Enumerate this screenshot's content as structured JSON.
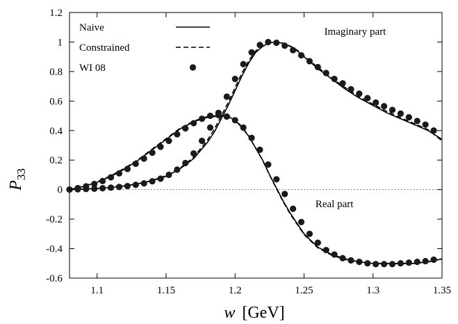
{
  "chart_data": {
    "type": "line",
    "title": "",
    "ylabel_main": "P",
    "ylabel_sub": "33",
    "xlabel_var": "w",
    "xlabel_unit": "[GeV]",
    "xlim": [
      1.08,
      1.35
    ],
    "ylim": [
      -0.6,
      1.2
    ],
    "xticks": [
      "1.1",
      "1.15",
      "1.2",
      "1.25",
      "1.3",
      "1.35"
    ],
    "xtick_values": [
      1.1,
      1.15,
      1.2,
      1.25,
      1.3,
      1.35
    ],
    "yticks": [
      "1.2",
      "1",
      "0.8",
      "0.6",
      "0.4",
      "0.2",
      "0",
      "-0.2",
      "-0.4",
      "-0.6"
    ],
    "ytick_values": [
      1.2,
      1.0,
      0.8,
      0.6,
      0.4,
      0.2,
      0.0,
      -0.2,
      -0.4,
      -0.6
    ],
    "zero_line": "dotted",
    "legend": {
      "position": "top-left",
      "entries": [
        {
          "label": "Naive",
          "style": "solid"
        },
        {
          "label": "Constrained",
          "style": "dashed"
        },
        {
          "label": "WI 08",
          "style": "points"
        }
      ]
    },
    "annotations": [
      {
        "text": "Imaginary part",
        "x": 1.287,
        "y": 1.05
      },
      {
        "text": "Real part",
        "x": 1.272,
        "y": -0.12
      }
    ],
    "series": [
      {
        "name": "Naive",
        "part": "imaginary",
        "style": "solid",
        "x": [
          1.08,
          1.09,
          1.1,
          1.11,
          1.12,
          1.13,
          1.14,
          1.15,
          1.16,
          1.17,
          1.18,
          1.185,
          1.19,
          1.195,
          1.2,
          1.205,
          1.21,
          1.215,
          1.22,
          1.225,
          1.23,
          1.235,
          1.24,
          1.245,
          1.25,
          1.26,
          1.27,
          1.28,
          1.29,
          1.3,
          1.31,
          1.32,
          1.33,
          1.34,
          1.35
        ],
        "y": [
          0.0,
          0.003,
          0.008,
          0.015,
          0.025,
          0.04,
          0.06,
          0.09,
          0.14,
          0.21,
          0.32,
          0.39,
          0.48,
          0.57,
          0.67,
          0.77,
          0.86,
          0.93,
          0.97,
          0.995,
          1.0,
          0.99,
          0.97,
          0.94,
          0.9,
          0.82,
          0.75,
          0.68,
          0.62,
          0.57,
          0.52,
          0.48,
          0.44,
          0.4,
          0.34
        ]
      },
      {
        "name": "Constrained",
        "part": "imaginary",
        "style": "dashed",
        "x": [
          1.08,
          1.09,
          1.1,
          1.11,
          1.12,
          1.13,
          1.14,
          1.15,
          1.16,
          1.17,
          1.18,
          1.185,
          1.19,
          1.195,
          1.2,
          1.205,
          1.21,
          1.215,
          1.22,
          1.225,
          1.23,
          1.235,
          1.24,
          1.245,
          1.25,
          1.26,
          1.27,
          1.28,
          1.29,
          1.3,
          1.31,
          1.32,
          1.33,
          1.34,
          1.35
        ],
        "y": [
          0.0,
          0.003,
          0.008,
          0.015,
          0.025,
          0.04,
          0.062,
          0.095,
          0.145,
          0.22,
          0.335,
          0.41,
          0.5,
          0.59,
          0.69,
          0.79,
          0.875,
          0.94,
          0.978,
          0.997,
          1.0,
          0.992,
          0.973,
          0.945,
          0.905,
          0.828,
          0.757,
          0.69,
          0.63,
          0.578,
          0.53,
          0.487,
          0.447,
          0.405,
          0.33
        ]
      },
      {
        "name": "Naive",
        "part": "real",
        "style": "solid",
        "x": [
          1.08,
          1.09,
          1.1,
          1.11,
          1.12,
          1.13,
          1.14,
          1.15,
          1.16,
          1.17,
          1.18,
          1.19,
          1.195,
          1.2,
          1.205,
          1.21,
          1.215,
          1.22,
          1.225,
          1.23,
          1.235,
          1.24,
          1.25,
          1.26,
          1.27,
          1.28,
          1.29,
          1.3,
          1.31,
          1.32,
          1.33,
          1.34,
          1.35
        ],
        "y": [
          0.0,
          0.02,
          0.05,
          0.09,
          0.14,
          0.2,
          0.27,
          0.34,
          0.41,
          0.46,
          0.49,
          0.5,
          0.495,
          0.47,
          0.42,
          0.36,
          0.28,
          0.2,
          0.1,
          0.01,
          -0.08,
          -0.16,
          -0.3,
          -0.39,
          -0.44,
          -0.47,
          -0.49,
          -0.5,
          -0.5,
          -0.5,
          -0.5,
          -0.49,
          -0.47
        ]
      },
      {
        "name": "Constrained",
        "part": "real",
        "style": "dashed",
        "x": [
          1.08,
          1.09,
          1.1,
          1.11,
          1.12,
          1.13,
          1.14,
          1.15,
          1.16,
          1.17,
          1.18,
          1.19,
          1.195,
          1.2,
          1.205,
          1.21,
          1.215,
          1.22,
          1.225,
          1.23,
          1.235,
          1.24,
          1.25,
          1.26,
          1.27,
          1.28,
          1.29,
          1.3,
          1.31,
          1.32,
          1.33,
          1.34,
          1.35
        ],
        "y": [
          0.0,
          0.022,
          0.053,
          0.094,
          0.145,
          0.205,
          0.275,
          0.345,
          0.415,
          0.465,
          0.495,
          0.505,
          0.5,
          0.475,
          0.425,
          0.362,
          0.28,
          0.198,
          0.098,
          0.006,
          -0.085,
          -0.166,
          -0.305,
          -0.395,
          -0.445,
          -0.474,
          -0.493,
          -0.502,
          -0.503,
          -0.502,
          -0.5,
          -0.489,
          -0.468
        ]
      },
      {
        "name": "WI 08",
        "part": "imaginary",
        "style": "points",
        "x": [
          1.08,
          1.086,
          1.092,
          1.098,
          1.104,
          1.11,
          1.116,
          1.122,
          1.128,
          1.134,
          1.14,
          1.146,
          1.152,
          1.158,
          1.164,
          1.17,
          1.176,
          1.182,
          1.188,
          1.194,
          1.2,
          1.206,
          1.212,
          1.218,
          1.224,
          1.23,
          1.236,
          1.242,
          1.248,
          1.254,
          1.26,
          1.266,
          1.272,
          1.278,
          1.284,
          1.29,
          1.296,
          1.302,
          1.308,
          1.314,
          1.32,
          1.326,
          1.332,
          1.338,
          1.344
        ],
        "y": [
          0.0,
          0.002,
          0.004,
          0.006,
          0.009,
          0.013,
          0.018,
          0.024,
          0.032,
          0.042,
          0.056,
          0.074,
          0.1,
          0.135,
          0.18,
          0.245,
          0.33,
          0.42,
          0.52,
          0.63,
          0.75,
          0.85,
          0.93,
          0.98,
          1.0,
          0.995,
          0.975,
          0.945,
          0.91,
          0.87,
          0.83,
          0.79,
          0.75,
          0.72,
          0.68,
          0.65,
          0.62,
          0.59,
          0.565,
          0.54,
          0.515,
          0.49,
          0.465,
          0.44,
          0.4
        ]
      },
      {
        "name": "WI 08",
        "part": "real",
        "style": "points",
        "x": [
          1.08,
          1.086,
          1.092,
          1.098,
          1.104,
          1.11,
          1.116,
          1.122,
          1.128,
          1.134,
          1.14,
          1.146,
          1.152,
          1.158,
          1.164,
          1.17,
          1.176,
          1.182,
          1.188,
          1.194,
          1.2,
          1.206,
          1.212,
          1.218,
          1.224,
          1.23,
          1.236,
          1.242,
          1.248,
          1.254,
          1.26,
          1.266,
          1.272,
          1.278,
          1.284,
          1.29,
          1.296,
          1.302,
          1.308,
          1.314,
          1.32,
          1.326,
          1.332,
          1.338,
          1.344
        ],
        "y": [
          0.0,
          0.01,
          0.022,
          0.038,
          0.058,
          0.083,
          0.11,
          0.14,
          0.175,
          0.21,
          0.25,
          0.29,
          0.33,
          0.375,
          0.415,
          0.45,
          0.48,
          0.5,
          0.505,
          0.495,
          0.47,
          0.42,
          0.35,
          0.27,
          0.17,
          0.07,
          -0.03,
          -0.13,
          -0.22,
          -0.3,
          -0.36,
          -0.41,
          -0.44,
          -0.465,
          -0.48,
          -0.49,
          -0.5,
          -0.505,
          -0.505,
          -0.505,
          -0.5,
          -0.495,
          -0.49,
          -0.485,
          -0.475
        ]
      }
    ]
  }
}
